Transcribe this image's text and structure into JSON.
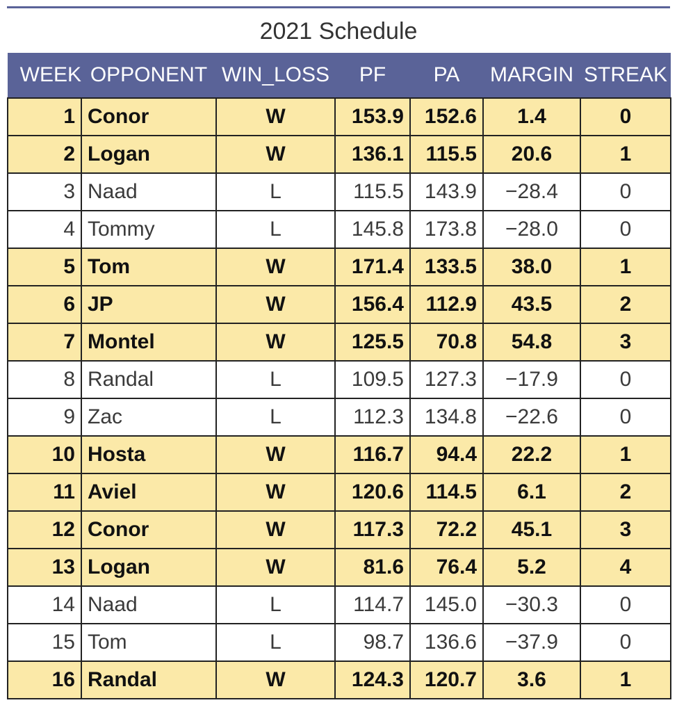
{
  "chart_data": {
    "type": "table",
    "title": "2021 Schedule",
    "columns": [
      "WEEK",
      "OPPONENT",
      "WIN_LOSS",
      "PF",
      "PA",
      "MARGIN",
      "STREAK"
    ],
    "rows": [
      {
        "week": "1",
        "opponent": "Conor",
        "win_loss": "W",
        "pf": "153.9",
        "pa": "152.6",
        "margin": "1.4",
        "streak": "0"
      },
      {
        "week": "2",
        "opponent": "Logan",
        "win_loss": "W",
        "pf": "136.1",
        "pa": "115.5",
        "margin": "20.6",
        "streak": "1"
      },
      {
        "week": "3",
        "opponent": "Naad",
        "win_loss": "L",
        "pf": "115.5",
        "pa": "143.9",
        "margin": "−28.4",
        "streak": "0"
      },
      {
        "week": "4",
        "opponent": "Tommy",
        "win_loss": "L",
        "pf": "145.8",
        "pa": "173.8",
        "margin": "−28.0",
        "streak": "0"
      },
      {
        "week": "5",
        "opponent": "Tom",
        "win_loss": "W",
        "pf": "171.4",
        "pa": "133.5",
        "margin": "38.0",
        "streak": "1"
      },
      {
        "week": "6",
        "opponent": "JP",
        "win_loss": "W",
        "pf": "156.4",
        "pa": "112.9",
        "margin": "43.5",
        "streak": "2"
      },
      {
        "week": "7",
        "opponent": "Montel",
        "win_loss": "W",
        "pf": "125.5",
        "pa": "70.8",
        "margin": "54.8",
        "streak": "3"
      },
      {
        "week": "8",
        "opponent": "Randal",
        "win_loss": "L",
        "pf": "109.5",
        "pa": "127.3",
        "margin": "−17.9",
        "streak": "0"
      },
      {
        "week": "9",
        "opponent": "Zac",
        "win_loss": "L",
        "pf": "112.3",
        "pa": "134.8",
        "margin": "−22.6",
        "streak": "0"
      },
      {
        "week": "10",
        "opponent": "Hosta",
        "win_loss": "W",
        "pf": "116.7",
        "pa": "94.4",
        "margin": "22.2",
        "streak": "1"
      },
      {
        "week": "11",
        "opponent": "Aviel",
        "win_loss": "W",
        "pf": "120.6",
        "pa": "114.5",
        "margin": "6.1",
        "streak": "2"
      },
      {
        "week": "12",
        "opponent": "Conor",
        "win_loss": "W",
        "pf": "117.3",
        "pa": "72.2",
        "margin": "45.1",
        "streak": "3"
      },
      {
        "week": "13",
        "opponent": "Logan",
        "win_loss": "W",
        "pf": "81.6",
        "pa": "76.4",
        "margin": "5.2",
        "streak": "4"
      },
      {
        "week": "14",
        "opponent": "Naad",
        "win_loss": "L",
        "pf": "114.7",
        "pa": "145.0",
        "margin": "−30.3",
        "streak": "0"
      },
      {
        "week": "15",
        "opponent": "Tom",
        "win_loss": "L",
        "pf": "98.7",
        "pa": "136.6",
        "margin": "−37.9",
        "streak": "0"
      },
      {
        "week": "16",
        "opponent": "Randal",
        "win_loss": "W",
        "pf": "124.3",
        "pa": "120.7",
        "margin": "3.6",
        "streak": "1"
      }
    ],
    "colors": {
      "header_bg": "#5a6398",
      "win_row_bg": "#fbe9a8",
      "loss_row_bg": "#ffffff"
    }
  }
}
